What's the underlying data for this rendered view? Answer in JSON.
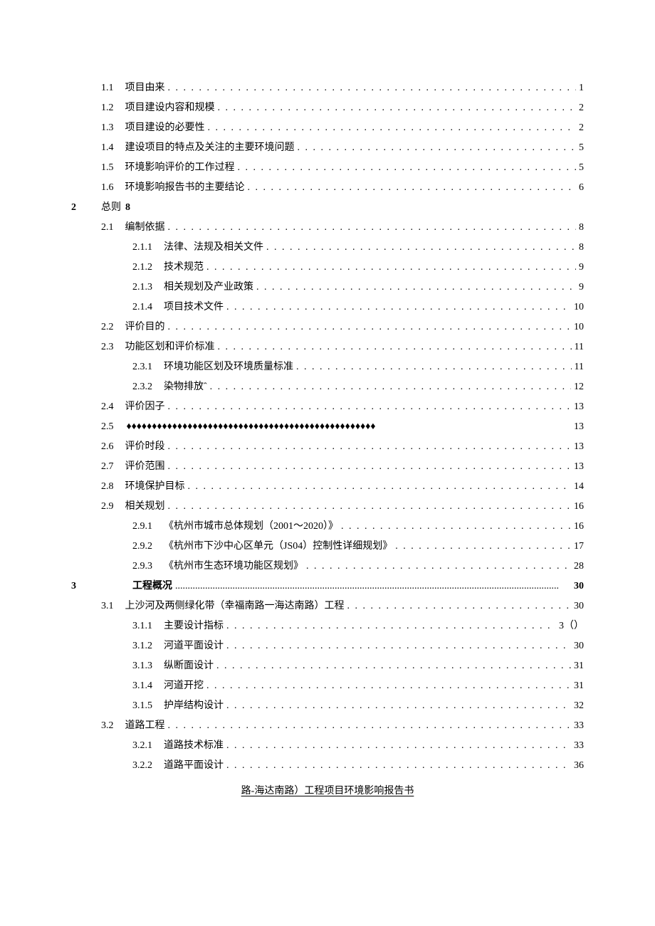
{
  "footer": "路-海达南路）工程项目环境影响报告书",
  "leader_dot": ". . . . . . . . . . . . . . . . . . . . . . . . . . . . . . . . . . . . . . . . . . . . . . . . . . . . . . . . . . . . . . . . . . . . . . . . . . . . . . . . . . . . . . . . . . . . . . . . . . . . . . . . . . . . . . . . . . . . . . . . . .",
  "leader_diamond": "♦♦♦♦♦♦♦♦♦♦♦♦♦♦♦♦♦♦♦♦♦♦♦♦♦♦♦♦♦♦♦♦♦♦♦♦♦♦♦♦♦♦♦♦♦♦♦♦♦",
  "entries": [
    {
      "type": "l2",
      "num": "1.1",
      "label": "项目由来",
      "page": "1"
    },
    {
      "type": "l2",
      "num": "1.2",
      "label": "项目建设内容和规模",
      "page": "2"
    },
    {
      "type": "l2",
      "num": "1.3",
      "label": "项目建设的必要性",
      "page": "2"
    },
    {
      "type": "l2",
      "num": "1.4",
      "label": "建设项目的特点及关注的主要环境问题",
      "page": "5"
    },
    {
      "type": "l2",
      "num": "1.5",
      "label": "环境影响评价的工作过程",
      "page": "5"
    },
    {
      "type": "l2",
      "num": "1.6",
      "label": "环境影响报告书的主要结论",
      "page": "6"
    },
    {
      "type": "chapter",
      "num": "2",
      "label": "总则",
      "page": "8"
    },
    {
      "type": "l2",
      "num": "2.1",
      "label": "编制依据",
      "page": "8"
    },
    {
      "type": "l3",
      "num": "2.1.1",
      "label": "法律、法规及相关文件",
      "page": "8"
    },
    {
      "type": "l3",
      "num": "2.1.2",
      "label": "技术规范",
      "page": "9"
    },
    {
      "type": "l3",
      "num": "2.1.3",
      "label": "相关规划及产业政策",
      "page": "9"
    },
    {
      "type": "l3",
      "num": "2.1.4",
      "label": "项目技术文件",
      "page": "10"
    },
    {
      "type": "l2",
      "num": "2.2",
      "label": "评价目的",
      "page": "10"
    },
    {
      "type": "l2",
      "num": "2.3",
      "label": "功能区划和评价标准",
      "page": "11"
    },
    {
      "type": "l3",
      "num": "2.3.1",
      "label": "环境功能区划及环境质量标准",
      "page": "11"
    },
    {
      "type": "l3",
      "num": "2.3.2",
      "label": "染物排放ˆ",
      "page": "12"
    },
    {
      "type": "l2",
      "num": "2.4",
      "label": "评价因子",
      "page": "13"
    },
    {
      "type": "l2-diamond",
      "num": "2.5",
      "label": "",
      "page": "13"
    },
    {
      "type": "l2",
      "num": "2.6",
      "label": "评价时段",
      "page": "13"
    },
    {
      "type": "l2",
      "num": "2.7",
      "label": "评价范围",
      "page": "13"
    },
    {
      "type": "l2",
      "num": "2.8",
      "label": "环境保护目标",
      "page": "14"
    },
    {
      "type": "l2",
      "num": "2.9",
      "label": "相关规划",
      "page": "16"
    },
    {
      "type": "l3",
      "num": "2.9.1",
      "label": "《杭州市城市总体规划（2001～2020）》",
      "page": "16"
    },
    {
      "type": "l3",
      "num": "2.9.2",
      "label": "《杭州市下沙中心区单元（JS04）控制性详细规划》",
      "page": "17"
    },
    {
      "type": "l3",
      "num": "2.9.3",
      "label": "《杭州市生态环境功能区规划》",
      "page": "28"
    },
    {
      "type": "chapter3",
      "num": "3",
      "label": "工程概况",
      "page": "30"
    },
    {
      "type": "l2",
      "num": "3.1",
      "label": "上沙河及两侧绿化带（幸福南路一海达南路）工程",
      "page": "30"
    },
    {
      "type": "l3",
      "num": "3.1.1",
      "label": "主要设计指标",
      "page": "3（）"
    },
    {
      "type": "l3",
      "num": "3.1.2",
      "label": "河道平面设计",
      "page": "30"
    },
    {
      "type": "l3",
      "num": "3.1.3",
      "label": "纵断面设计",
      "page": "31"
    },
    {
      "type": "l3",
      "num": "3.1.4",
      "label": "河道开挖",
      "page": "31"
    },
    {
      "type": "l3",
      "num": "3.1.5",
      "label": "护岸结构设计",
      "page": "32"
    },
    {
      "type": "l2",
      "num": "3.2",
      "label": "道路工程",
      "page": "33"
    },
    {
      "type": "l3",
      "num": "3.2.1",
      "label": "道路技术标准",
      "page": "33"
    },
    {
      "type": "l3",
      "num": "3.2.2",
      "label": "道路平面设计",
      "page": "36"
    }
  ]
}
